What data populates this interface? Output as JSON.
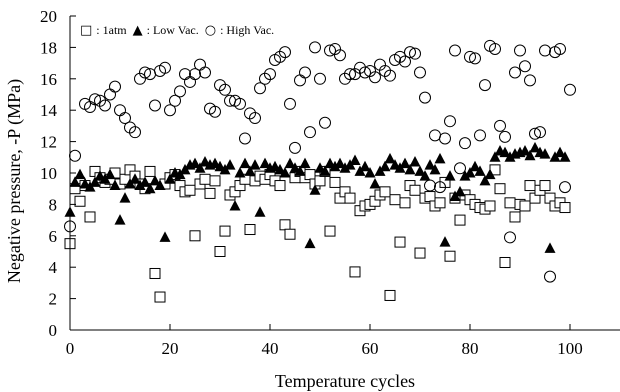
{
  "chart_data": {
    "type": "scatter",
    "title": "",
    "xlabel": "Temperature  cycles",
    "ylabel": "Negative pressure, -P  (MPa)",
    "xlim": [
      0,
      110
    ],
    "ylim": [
      0,
      20
    ],
    "xticks": [
      0,
      20,
      40,
      60,
      80,
      100
    ],
    "yticks": [
      0,
      2,
      4,
      6,
      8,
      10,
      12,
      14,
      16,
      18,
      20
    ],
    "grid": false,
    "legend_position": "top-left",
    "legend": [
      {
        "symbol": "□",
        "label": ": 1atm"
      },
      {
        "symbol": "▲",
        "label": ": Low Vac."
      },
      {
        "symbol": "○",
        "label": ": High Vac."
      }
    ],
    "series": [
      {
        "name": "1atm",
        "marker": "open-square",
        "points": [
          [
            0,
            5.5
          ],
          [
            1,
            9.0
          ],
          [
            2,
            8.2
          ],
          [
            3,
            9.2
          ],
          [
            4,
            7.2
          ],
          [
            5,
            10.1
          ],
          [
            6,
            9.7
          ],
          [
            7,
            9.4
          ],
          [
            8,
            9.6
          ],
          [
            9,
            10.0
          ],
          [
            10,
            9.3
          ],
          [
            11,
            9.6
          ],
          [
            12,
            10.2
          ],
          [
            13,
            9.8
          ],
          [
            14,
            9.3
          ],
          [
            15,
            9.0
          ],
          [
            16,
            10.1
          ],
          [
            17,
            3.6
          ],
          [
            18,
            2.1
          ],
          [
            19,
            9.3
          ],
          [
            20,
            9.7
          ],
          [
            21,
            9.9
          ],
          [
            22,
            9.2
          ],
          [
            23,
            8.8
          ],
          [
            24,
            8.9
          ],
          [
            25,
            6.0
          ],
          [
            26,
            9.3
          ],
          [
            27,
            9.6
          ],
          [
            28,
            8.7
          ],
          [
            29,
            9.5
          ],
          [
            30,
            5.0
          ],
          [
            31,
            6.3
          ],
          [
            32,
            8.6
          ],
          [
            33,
            8.8
          ],
          [
            34,
            9.2
          ],
          [
            35,
            9.6
          ],
          [
            36,
            6.4
          ],
          [
            37,
            9.5
          ],
          [
            38,
            9.8
          ],
          [
            39,
            9.6
          ],
          [
            40,
            9.9
          ],
          [
            41,
            9.5
          ],
          [
            42,
            9.2
          ],
          [
            43,
            6.7
          ],
          [
            44,
            6.1
          ],
          [
            45,
            9.7
          ],
          [
            46,
            10.1
          ],
          [
            47,
            9.7
          ],
          [
            48,
            9.9
          ],
          [
            49,
            9.3
          ],
          [
            50,
            9.5
          ],
          [
            51,
            10.1
          ],
          [
            52,
            6.3
          ],
          [
            53,
            9.4
          ],
          [
            54,
            8.4
          ],
          [
            55,
            8.8
          ],
          [
            56,
            8.4
          ],
          [
            57,
            3.7
          ],
          [
            58,
            7.6
          ],
          [
            59,
            7.9
          ],
          [
            60,
            8.0
          ],
          [
            61,
            8.2
          ],
          [
            62,
            8.6
          ],
          [
            63,
            8.8
          ],
          [
            64,
            2.2
          ],
          [
            65,
            8.3
          ],
          [
            66,
            5.6
          ],
          [
            67,
            8.1
          ],
          [
            68,
            9.2
          ],
          [
            69,
            8.9
          ],
          [
            70,
            4.9
          ],
          [
            71,
            8.4
          ],
          [
            72,
            8.5
          ],
          [
            73,
            7.9
          ],
          [
            74,
            8.1
          ],
          [
            75,
            9.4
          ],
          [
            76,
            4.7
          ],
          [
            77,
            8.4
          ],
          [
            78,
            7.0
          ],
          [
            79,
            8.6
          ],
          [
            80,
            8.3
          ],
          [
            81,
            8.0
          ],
          [
            82,
            7.8
          ],
          [
            83,
            7.7
          ],
          [
            84,
            7.9
          ],
          [
            85,
            10.2
          ],
          [
            86,
            9.0
          ],
          [
            87,
            4.3
          ],
          [
            88,
            8.1
          ],
          [
            89,
            7.2
          ],
          [
            90,
            8.0
          ],
          [
            91,
            7.9
          ],
          [
            92,
            9.2
          ],
          [
            93,
            8.4
          ],
          [
            94,
            8.9
          ],
          [
            95,
            9.2
          ],
          [
            96,
            8.4
          ],
          [
            97,
            7.9
          ],
          [
            98,
            8.1
          ],
          [
            99,
            7.8
          ]
        ]
      },
      {
        "name": "Low Vac.",
        "marker": "filled-triangle",
        "points": [
          [
            0,
            7.5
          ],
          [
            1,
            9.4
          ],
          [
            2,
            9.9
          ],
          [
            3,
            9.3
          ],
          [
            4,
            9.1
          ],
          [
            5,
            9.4
          ],
          [
            6,
            9.8
          ],
          [
            7,
            9.6
          ],
          [
            8,
            9.9
          ],
          [
            9,
            9.2
          ],
          [
            10,
            7.0
          ],
          [
            11,
            8.4
          ],
          [
            12,
            9.3
          ],
          [
            13,
            9.6
          ],
          [
            14,
            9.2
          ],
          [
            15,
            9.4
          ],
          [
            16,
            9.0
          ],
          [
            17,
            9.5
          ],
          [
            18,
            9.2
          ],
          [
            19,
            5.9
          ],
          [
            20,
            9.6
          ],
          [
            21,
            10.0
          ],
          [
            22,
            9.9
          ],
          [
            23,
            10.2
          ],
          [
            24,
            10.5
          ],
          [
            25,
            10.6
          ],
          [
            26,
            10.3
          ],
          [
            27,
            10.7
          ],
          [
            28,
            10.5
          ],
          [
            29,
            10.6
          ],
          [
            30,
            10.4
          ],
          [
            31,
            10.2
          ],
          [
            32,
            10.5
          ],
          [
            33,
            7.9
          ],
          [
            34,
            10.0
          ],
          [
            35,
            10.6
          ],
          [
            36,
            10.1
          ],
          [
            37,
            10.5
          ],
          [
            38,
            7.5
          ],
          [
            39,
            10.6
          ],
          [
            40,
            10.3
          ],
          [
            41,
            10.4
          ],
          [
            42,
            10.2
          ],
          [
            43,
            10.0
          ],
          [
            44,
            10.6
          ],
          [
            45,
            10.3
          ],
          [
            46,
            10.1
          ],
          [
            47,
            10.6
          ],
          [
            48,
            5.5
          ],
          [
            49,
            8.9
          ],
          [
            50,
            10.3
          ],
          [
            51,
            10.1
          ],
          [
            52,
            10.6
          ],
          [
            53,
            10.4
          ],
          [
            54,
            10.6
          ],
          [
            55,
            10.3
          ],
          [
            56,
            10.5
          ],
          [
            57,
            10.8
          ],
          [
            58,
            10.1
          ],
          [
            59,
            10.4
          ],
          [
            60,
            10.0
          ],
          [
            61,
            9.3
          ],
          [
            62,
            10.1
          ],
          [
            63,
            10.4
          ],
          [
            64,
            10.9
          ],
          [
            65,
            10.5
          ],
          [
            66,
            10.3
          ],
          [
            67,
            10.6
          ],
          [
            68,
            10.2
          ],
          [
            69,
            10.7
          ],
          [
            70,
            10.1
          ],
          [
            71,
            9.8
          ],
          [
            72,
            10.5
          ],
          [
            73,
            10.2
          ],
          [
            74,
            10.9
          ],
          [
            75,
            5.6
          ],
          [
            76,
            9.8
          ],
          [
            77,
            8.5
          ],
          [
            78,
            8.8
          ],
          [
            79,
            9.8
          ],
          [
            80,
            10.0
          ],
          [
            81,
            10.4
          ],
          [
            82,
            10.1
          ],
          [
            83,
            9.5
          ],
          [
            84,
            9.9
          ],
          [
            85,
            11.0
          ],
          [
            86,
            11.4
          ],
          [
            87,
            11.3
          ],
          [
            88,
            11.0
          ],
          [
            89,
            11.2
          ],
          [
            90,
            11.3
          ],
          [
            91,
            11.4
          ],
          [
            92,
            11.1
          ],
          [
            93,
            11.6
          ],
          [
            94,
            11.3
          ],
          [
            95,
            11.2
          ],
          [
            96,
            5.2
          ],
          [
            97,
            11.0
          ],
          [
            98,
            11.3
          ],
          [
            99,
            11.0
          ]
        ]
      },
      {
        "name": "High Vac.",
        "marker": "open-circle",
        "points": [
          [
            0,
            6.6
          ],
          [
            1,
            11.1
          ],
          [
            2,
            9.5
          ],
          [
            3,
            14.4
          ],
          [
            4,
            14.2
          ],
          [
            5,
            14.7
          ],
          [
            6,
            14.6
          ],
          [
            7,
            14.3
          ],
          [
            8,
            15.0
          ],
          [
            9,
            15.5
          ],
          [
            10,
            14.0
          ],
          [
            11,
            13.5
          ],
          [
            12,
            12.9
          ],
          [
            13,
            12.6
          ],
          [
            14,
            16.0
          ],
          [
            15,
            16.4
          ],
          [
            16,
            16.3
          ],
          [
            17,
            14.3
          ],
          [
            18,
            16.5
          ],
          [
            19,
            16.7
          ],
          [
            20,
            14.0
          ],
          [
            21,
            14.6
          ],
          [
            22,
            15.2
          ],
          [
            23,
            16.3
          ],
          [
            24,
            15.8
          ],
          [
            25,
            16.3
          ],
          [
            26,
            16.9
          ],
          [
            27,
            16.4
          ],
          [
            28,
            14.1
          ],
          [
            29,
            13.9
          ],
          [
            30,
            15.6
          ],
          [
            31,
            15.3
          ],
          [
            32,
            14.6
          ],
          [
            33,
            14.6
          ],
          [
            34,
            14.4
          ],
          [
            35,
            12.2
          ],
          [
            36,
            13.8
          ],
          [
            37,
            13.5
          ],
          [
            38,
            15.4
          ],
          [
            39,
            16.0
          ],
          [
            40,
            16.3
          ],
          [
            41,
            17.2
          ],
          [
            42,
            17.4
          ],
          [
            43,
            17.7
          ],
          [
            44,
            14.4
          ],
          [
            45,
            11.6
          ],
          [
            46,
            15.9
          ],
          [
            47,
            16.4
          ],
          [
            48,
            12.6
          ],
          [
            49,
            18.0
          ],
          [
            50,
            16.0
          ],
          [
            51,
            13.2
          ],
          [
            52,
            17.8
          ],
          [
            53,
            17.9
          ],
          [
            54,
            17.5
          ],
          [
            55,
            16.0
          ],
          [
            56,
            16.3
          ],
          [
            57,
            16.3
          ],
          [
            58,
            16.7
          ],
          [
            59,
            16.4
          ],
          [
            60,
            16.5
          ],
          [
            61,
            16.1
          ],
          [
            62,
            16.9
          ],
          [
            63,
            16.5
          ],
          [
            64,
            16.2
          ],
          [
            65,
            17.2
          ],
          [
            66,
            17.4
          ],
          [
            67,
            17.1
          ],
          [
            68,
            17.7
          ],
          [
            69,
            17.6
          ],
          [
            70,
            16.4
          ],
          [
            71,
            14.8
          ],
          [
            72,
            9.2
          ],
          [
            73,
            12.4
          ],
          [
            74,
            9.1
          ],
          [
            75,
            12.2
          ],
          [
            76,
            13.3
          ],
          [
            77,
            17.8
          ],
          [
            78,
            10.3
          ],
          [
            79,
            11.9
          ],
          [
            80,
            17.4
          ],
          [
            81,
            17.3
          ],
          [
            82,
            12.4
          ],
          [
            83,
            15.6
          ],
          [
            84,
            18.1
          ],
          [
            85,
            17.9
          ],
          [
            86,
            13.0
          ],
          [
            87,
            12.3
          ],
          [
            88,
            5.9
          ],
          [
            89,
            16.4
          ],
          [
            90,
            17.8
          ],
          [
            91,
            16.8
          ],
          [
            92,
            15.9
          ],
          [
            93,
            12.5
          ],
          [
            94,
            12.6
          ],
          [
            95,
            17.8
          ],
          [
            96,
            3.4
          ],
          [
            97,
            17.7
          ],
          [
            98,
            17.9
          ],
          [
            99,
            9.1
          ],
          [
            100,
            15.3
          ]
        ]
      }
    ]
  }
}
